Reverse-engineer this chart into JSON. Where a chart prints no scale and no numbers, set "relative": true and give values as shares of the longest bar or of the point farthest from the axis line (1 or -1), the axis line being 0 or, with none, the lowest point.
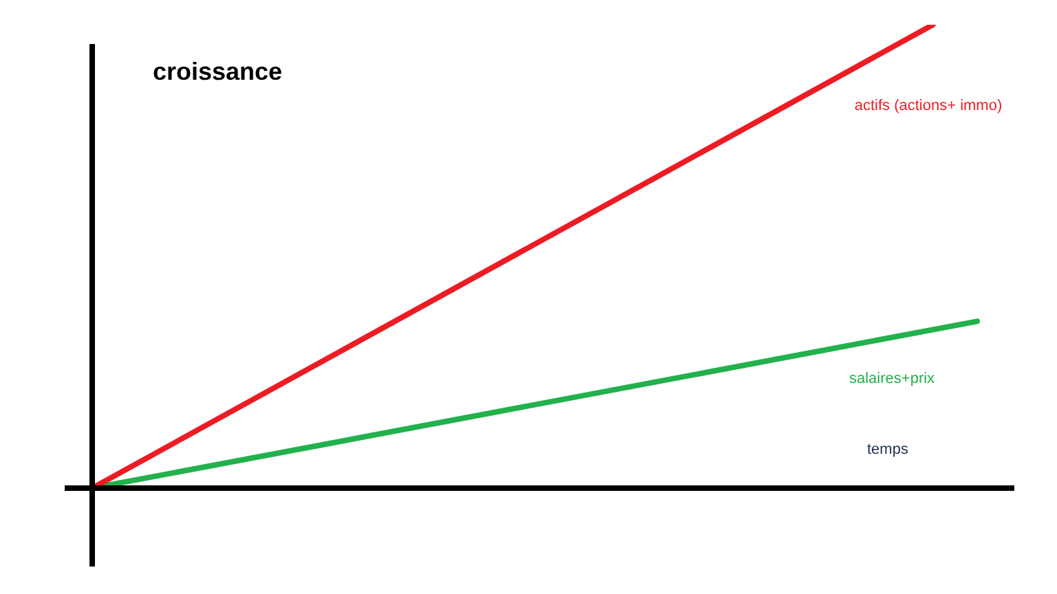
{
  "chart_data": {
    "type": "line",
    "relative": true,
    "xlabel": "temps",
    "ylabel": "croissance",
    "categories": [
      null,
      null,
      null,
      null,
      null,
      null,
      null,
      null,
      null,
      null,
      null,
      null,
      null,
      null,
      null,
      null,
      null,
      null,
      null,
      null,
      null
    ],
    "series": [
      {
        "name": "actifs (actions+ immo)",
        "color": "#ed1c24",
        "values": [
          0,
          null,
          null,
          null,
          null,
          null,
          null,
          null,
          null,
          null,
          null,
          null,
          null,
          null,
          null,
          null,
          null,
          null,
          null,
          1,
          null
        ]
      },
      {
        "name": "salaires+prix",
        "color": "#22b14c",
        "values": [
          0,
          null,
          null,
          null,
          null,
          null,
          null,
          null,
          null,
          null,
          null,
          null,
          null,
          null,
          null,
          null,
          null,
          null,
          null,
          null,
          0.36
        ]
      }
    ],
    "legend": false,
    "grid": false,
    "marker": "none",
    "line_style": "solid",
    "tick_labels": false
  }
}
